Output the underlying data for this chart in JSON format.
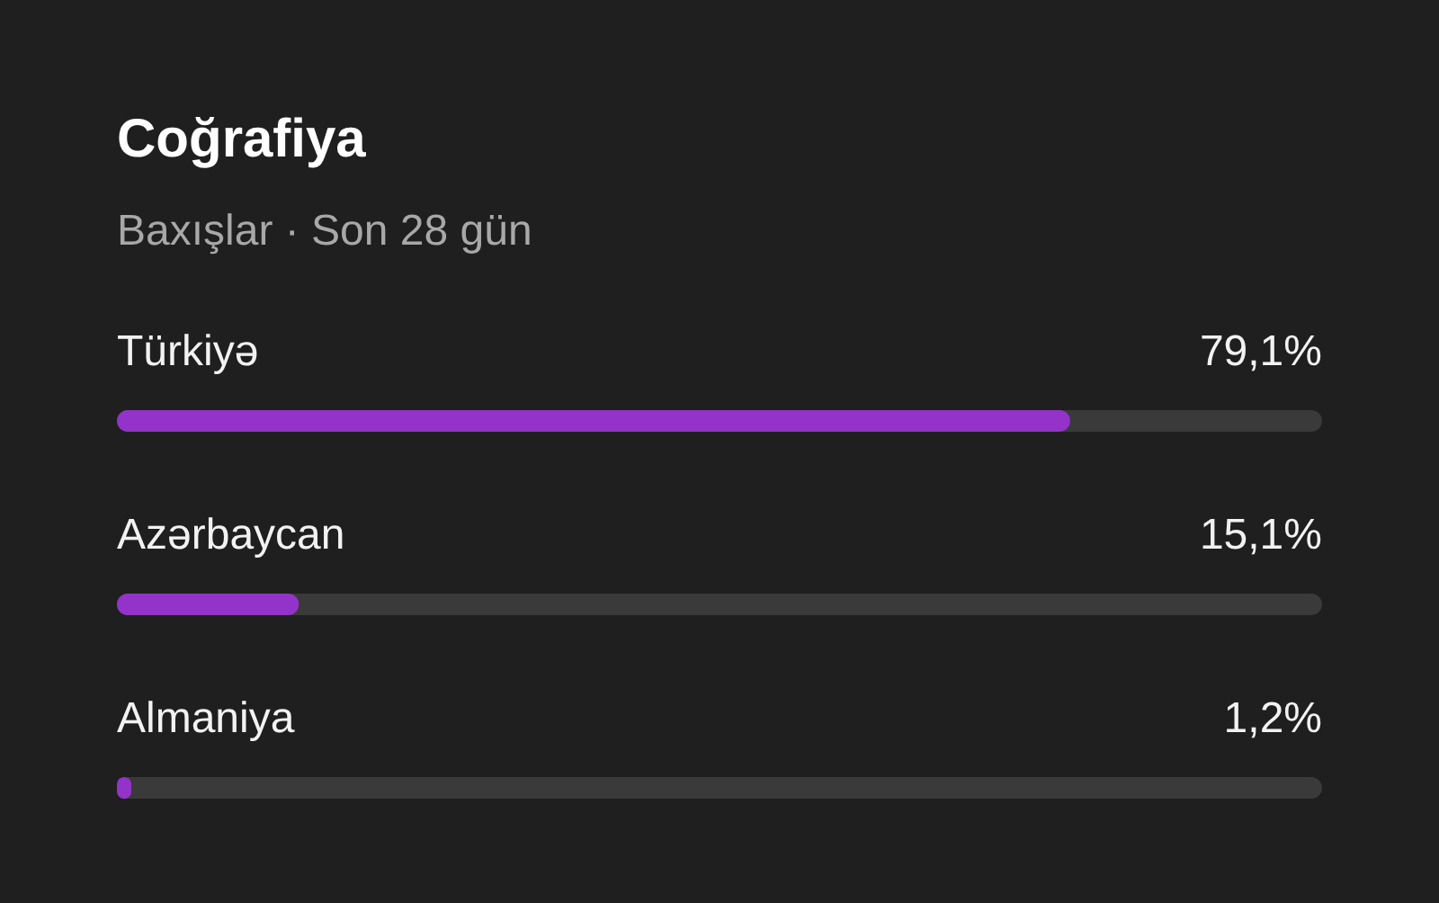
{
  "chart_data": {
    "type": "bar",
    "orientation": "horizontal",
    "title": "Coğrafiya",
    "subtitle": "Baxışlar · Son 28 gün",
    "categories": [
      "Türkiyə",
      "Azərbaycan",
      "Almaniya"
    ],
    "values": [
      79.1,
      15.1,
      1.2
    ],
    "value_labels": [
      "79,1%",
      "15,1%",
      "1,2%"
    ],
    "color": "#9333c9",
    "xlim": [
      0,
      100
    ],
    "tick_labels": false
  }
}
